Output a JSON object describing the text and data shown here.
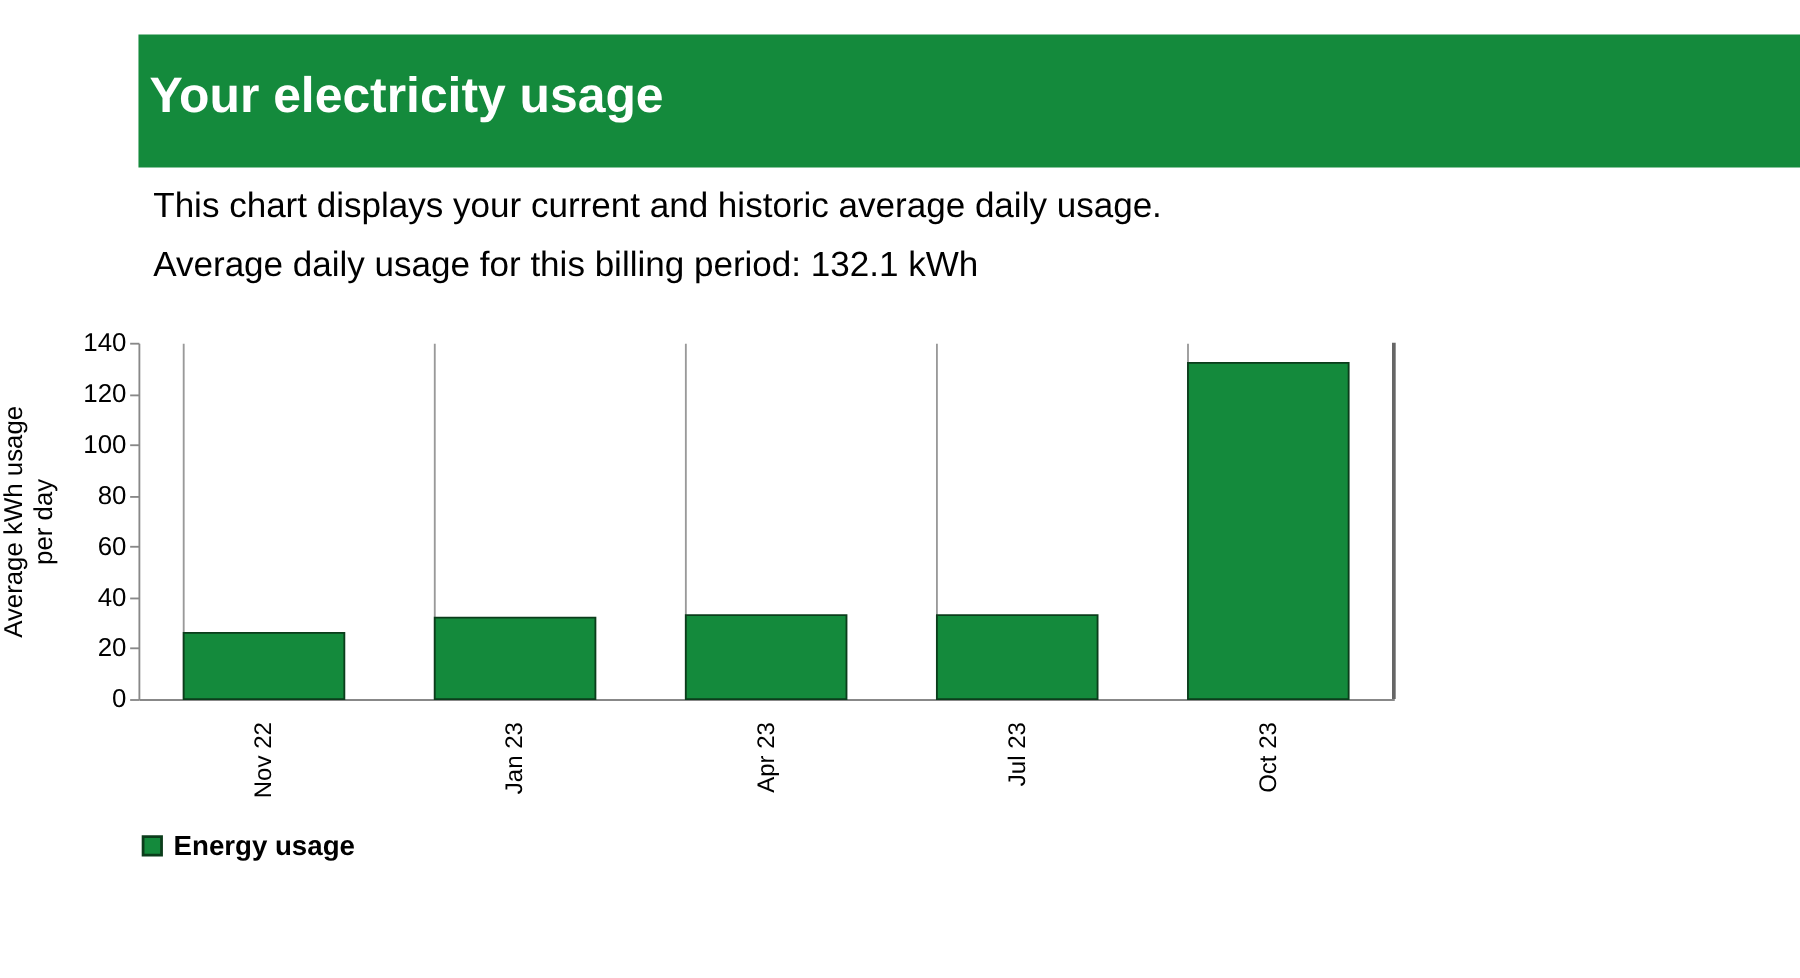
{
  "chart_data": {
    "type": "bar",
    "title": "Your electricity usage",
    "subtitle": "This chart displays your current and historic average daily usage.",
    "annotations": [
      "Average daily usage for this billing period: 132.1 kWh"
    ],
    "ylabel": "Average kWh usage per day",
    "categories": [
      "Nov 22",
      "Jan 23",
      "Apr 23",
      "Jul 23",
      "Oct 23"
    ],
    "series": [
      {
        "name": "Energy usage",
        "color": "#148a3c",
        "values": [
          26,
          32,
          33,
          33,
          132.1
        ]
      }
    ],
    "ylim": [
      0,
      140
    ],
    "yticks": [
      0,
      20,
      40,
      60,
      80,
      100,
      120,
      140
    ],
    "grid": "x",
    "legend": "bottom"
  }
}
